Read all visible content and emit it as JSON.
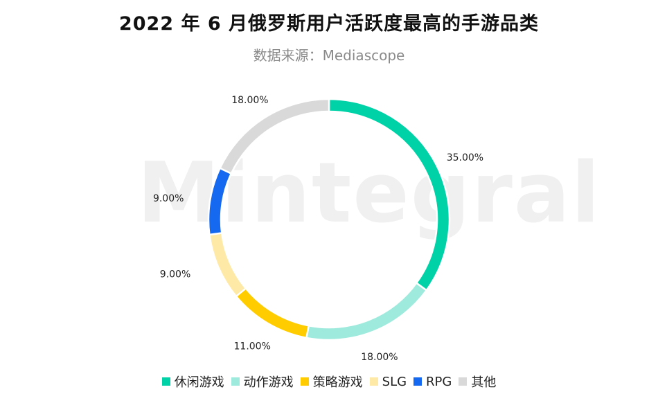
{
  "title": "2022 年 6 月俄罗斯用户活跃度最高的手游品类",
  "subtitle": "数据来源：Mediascope",
  "watermark": "Mintegral",
  "chart_data": {
    "type": "pie",
    "donut": true,
    "title": "2022 年 6 月俄罗斯用户活跃度最高的手游品类",
    "subtitle": "数据来源：Mediascope",
    "legend_position": "bottom",
    "slices": [
      {
        "name": "休闲游戏",
        "value": 35.0,
        "label": "35.00%",
        "color": "#00D2A8"
      },
      {
        "name": "动作游戏",
        "value": 18.0,
        "label": "18.00%",
        "color": "#9EEADC"
      },
      {
        "name": "策略游戏",
        "value": 11.0,
        "label": "11.00%",
        "color": "#FFCC00"
      },
      {
        "name": "SLG",
        "value": 9.0,
        "label": "9.00%",
        "color": "#FFE9A6"
      },
      {
        "name": "RPG",
        "value": 9.0,
        "label": "9.00%",
        "color": "#1469F0"
      },
      {
        "name": "其他",
        "value": 18.0,
        "label": "18.00%",
        "color": "#D9D9D9"
      }
    ]
  }
}
